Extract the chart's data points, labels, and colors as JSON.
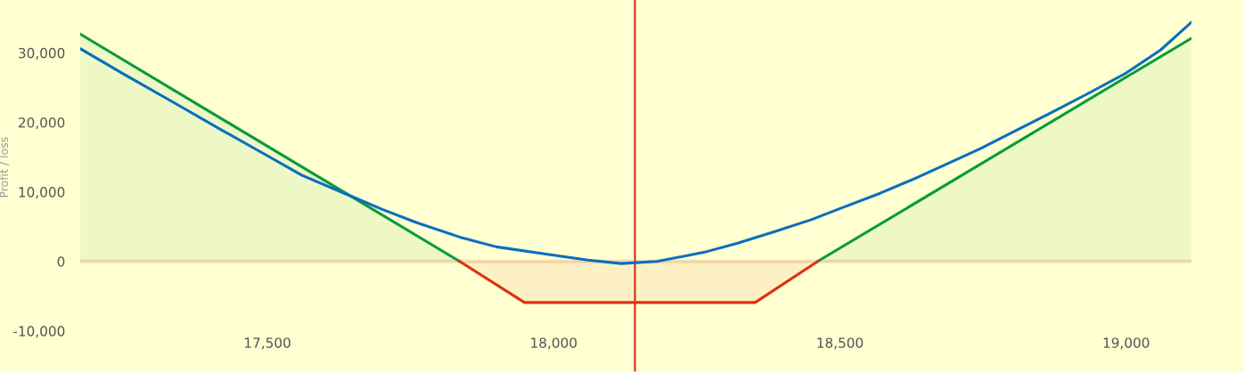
{
  "chart_data": {
    "type": "line",
    "ylabel": "Profit / loss",
    "xlim": [
      17173,
      19114
    ],
    "ylim": [
      -15900,
      37600
    ],
    "xticks": [
      {
        "value": 17500,
        "label": "17,500"
      },
      {
        "value": 18000,
        "label": "18,000"
      },
      {
        "value": 18500,
        "label": "18,500"
      },
      {
        "value": 19000,
        "label": "19,000"
      }
    ],
    "yticks": [
      {
        "value": -10000,
        "label": "-10,000"
      },
      {
        "value": 0,
        "label": "0"
      },
      {
        "value": 10000,
        "label": "10,000"
      },
      {
        "value": 20000,
        "label": "20,000"
      },
      {
        "value": 30000,
        "label": "30,000"
      }
    ],
    "grid": false,
    "legend": false,
    "series": [
      {
        "type": "area",
        "color": "#0a9a3c",
        "x": [
          17173,
          17836,
          17949,
          18352,
          18461,
          19114
        ],
        "values": [
          32700,
          0,
          null,
          null,
          0,
          32100
        ]
      },
      {
        "type": "area",
        "color": "#e03010",
        "x": [
          17836,
          17949,
          18352,
          18461
        ],
        "values": [
          0,
          -5900,
          -5900,
          0
        ]
      },
      {
        "color": "#0a6ebd",
        "x": [
          17173,
          17250,
          17344,
          17420,
          17500,
          17560,
          17640,
          17700,
          17760,
          17836,
          17900,
          18000,
          18060,
          18118,
          18180,
          18262,
          18320,
          18386,
          18450,
          18500,
          18570,
          18636,
          18700,
          18745,
          18800,
          18869,
          18930,
          19000,
          19060,
          19114
        ],
        "values": [
          30600,
          26900,
          22500,
          18900,
          15200,
          12400,
          9600,
          7500,
          5600,
          3500,
          2100,
          900,
          200,
          -300,
          0,
          1300,
          2600,
          4300,
          6000,
          7600,
          9800,
          12100,
          14500,
          16200,
          18500,
          21400,
          24000,
          27100,
          30400,
          34400
        ]
      }
    ],
    "ref_lines": [
      {
        "axis": "y",
        "value": 0,
        "color": "#f2dfb0"
      },
      {
        "axis": "x",
        "value": 18142,
        "color": "#d42a10"
      }
    ]
  }
}
